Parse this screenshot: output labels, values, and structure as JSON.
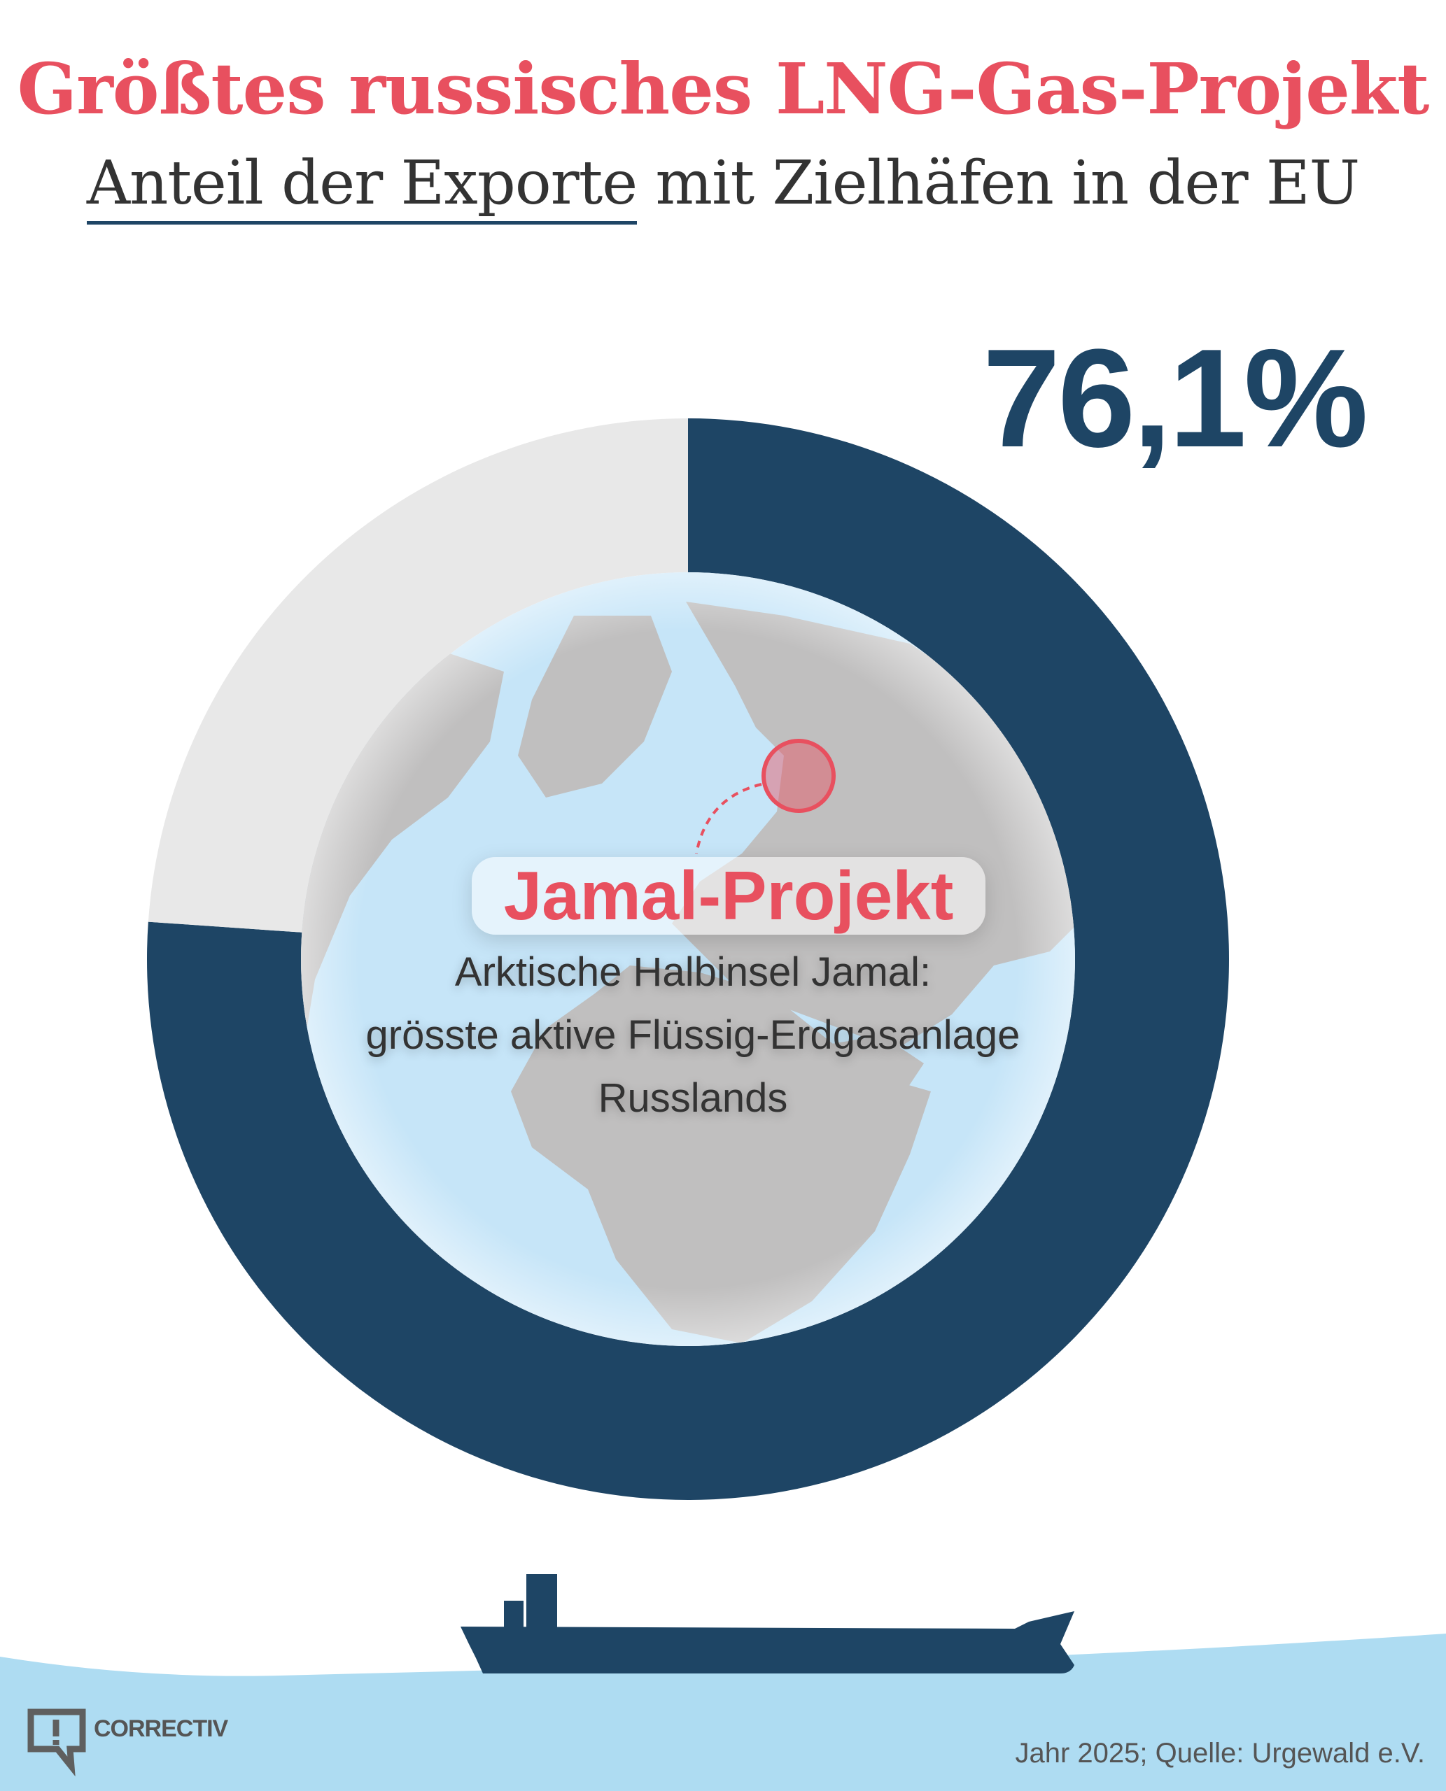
{
  "header": {
    "title": "Größtes russisches LNG-Gas-Projekt",
    "subtitle_underlined": "Anteil der Exporte",
    "subtitle_rest": " mit Zielhäfen in der EU"
  },
  "chart_data": {
    "type": "pie",
    "title": "Anteil der Exporte mit Zielhäfen in der EU",
    "value_label": "76,1%",
    "slices": [
      {
        "name": "EU",
        "value": 76.1,
        "color": "#1e4565"
      },
      {
        "name": "Rest",
        "value": 23.9,
        "color": "#e8e8e8"
      }
    ]
  },
  "annotation": {
    "label": "Jamal-Projekt",
    "lines": [
      "Arktische Halbinsel Jamal:",
      "grösste aktive Flüssig-Erdgasanlage",
      "Russlands"
    ]
  },
  "footer": {
    "logo": "CORRECTIV",
    "source": "Jahr 2025; Quelle: Urgewald e.V."
  },
  "colors": {
    "accent": "#e8505f",
    "navy": "#1e4565",
    "water": "#aedcf2",
    "land": "#c0bfbf",
    "ocean": "#c6e5f8"
  }
}
